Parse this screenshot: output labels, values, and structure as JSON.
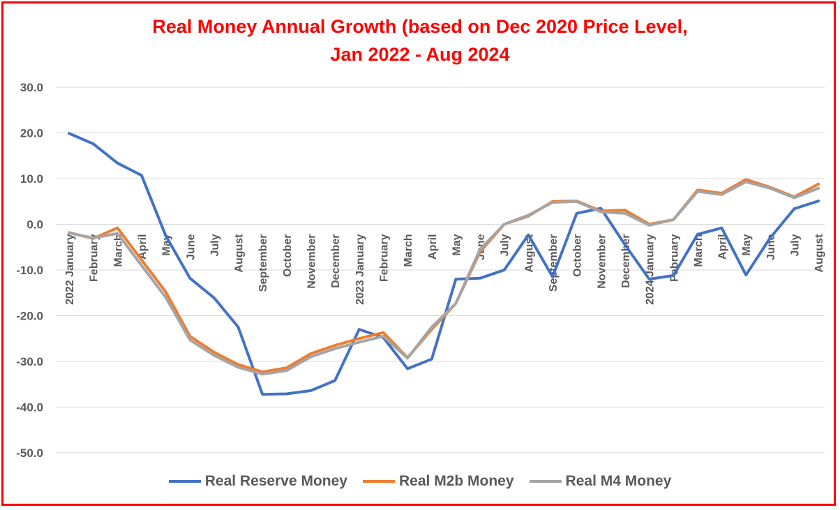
{
  "chart_data": {
    "type": "line",
    "title_lines": [
      "Real Money Annual Growth (based on Dec 2020 Price Level,",
      "Jan 2022 - Aug 2024"
    ],
    "xlabel": "",
    "ylabel": "",
    "ylim": [
      -50,
      30
    ],
    "yticks": [
      "30.0",
      "20.0",
      "10.0",
      "0.0",
      "-10.0",
      "-20.0",
      "-30.0",
      "-40.0",
      "-50.0"
    ],
    "ytick_values": [
      30,
      20,
      10,
      0,
      -10,
      -20,
      -30,
      -40,
      -50
    ],
    "grid": true,
    "legend_position": "bottom",
    "categories": [
      "2022 January",
      "February",
      "March",
      "April",
      "May",
      "June",
      "July",
      "August",
      "September",
      "October",
      "November",
      "December",
      "2023 January",
      "February",
      "March",
      "April",
      "May",
      "June",
      "July",
      "August",
      "September",
      "October",
      "November",
      "December",
      "2024 January",
      "February",
      "March",
      "April",
      "May",
      "June",
      "July",
      "August"
    ],
    "series": [
      {
        "name": "Real Reserve Money",
        "color": "#4472c4",
        "values": [
          19.9,
          17.6,
          13.4,
          10.7,
          -2.5,
          -11.8,
          -16.1,
          -22.5,
          -37.2,
          -37.1,
          -36.4,
          -34.2,
          -23.0,
          -24.8,
          -31.6,
          -29.5,
          -12.0,
          -11.8,
          -10.0,
          -2.3,
          -11.5,
          2.4,
          3.5,
          -4.5,
          -12.0,
          -11.2,
          -2.2,
          -0.8,
          -11.1,
          -3.0,
          3.4,
          5.1
        ]
      },
      {
        "name": "Real M2b Money",
        "color": "#ed7d31",
        "values": [
          -1.8,
          -3.1,
          -0.8,
          -7.8,
          -14.8,
          -24.5,
          -28.0,
          -30.7,
          -32.3,
          -31.4,
          -28.3,
          -26.5,
          -25.0,
          -23.7,
          -29.2,
          -23.0,
          -17.3,
          -6.0,
          0.0,
          1.8,
          5.0,
          5.1,
          2.9,
          3.1,
          0.0,
          1.0,
          7.5,
          6.8,
          9.8,
          8.1,
          6.0,
          8.8
        ]
      },
      {
        "name": "Real M4 Money",
        "color": "#a5a5a5",
        "values": [
          -1.9,
          -3.0,
          -2.0,
          -9.0,
          -16.0,
          -25.3,
          -28.7,
          -31.3,
          -32.8,
          -32.0,
          -29.0,
          -27.2,
          -25.8,
          -24.5,
          -29.3,
          -22.5,
          -17.3,
          -5.5,
          0.0,
          2.0,
          4.8,
          5.0,
          2.7,
          2.4,
          -0.2,
          1.0,
          7.2,
          6.5,
          9.3,
          7.9,
          5.8,
          7.9
        ]
      }
    ]
  }
}
